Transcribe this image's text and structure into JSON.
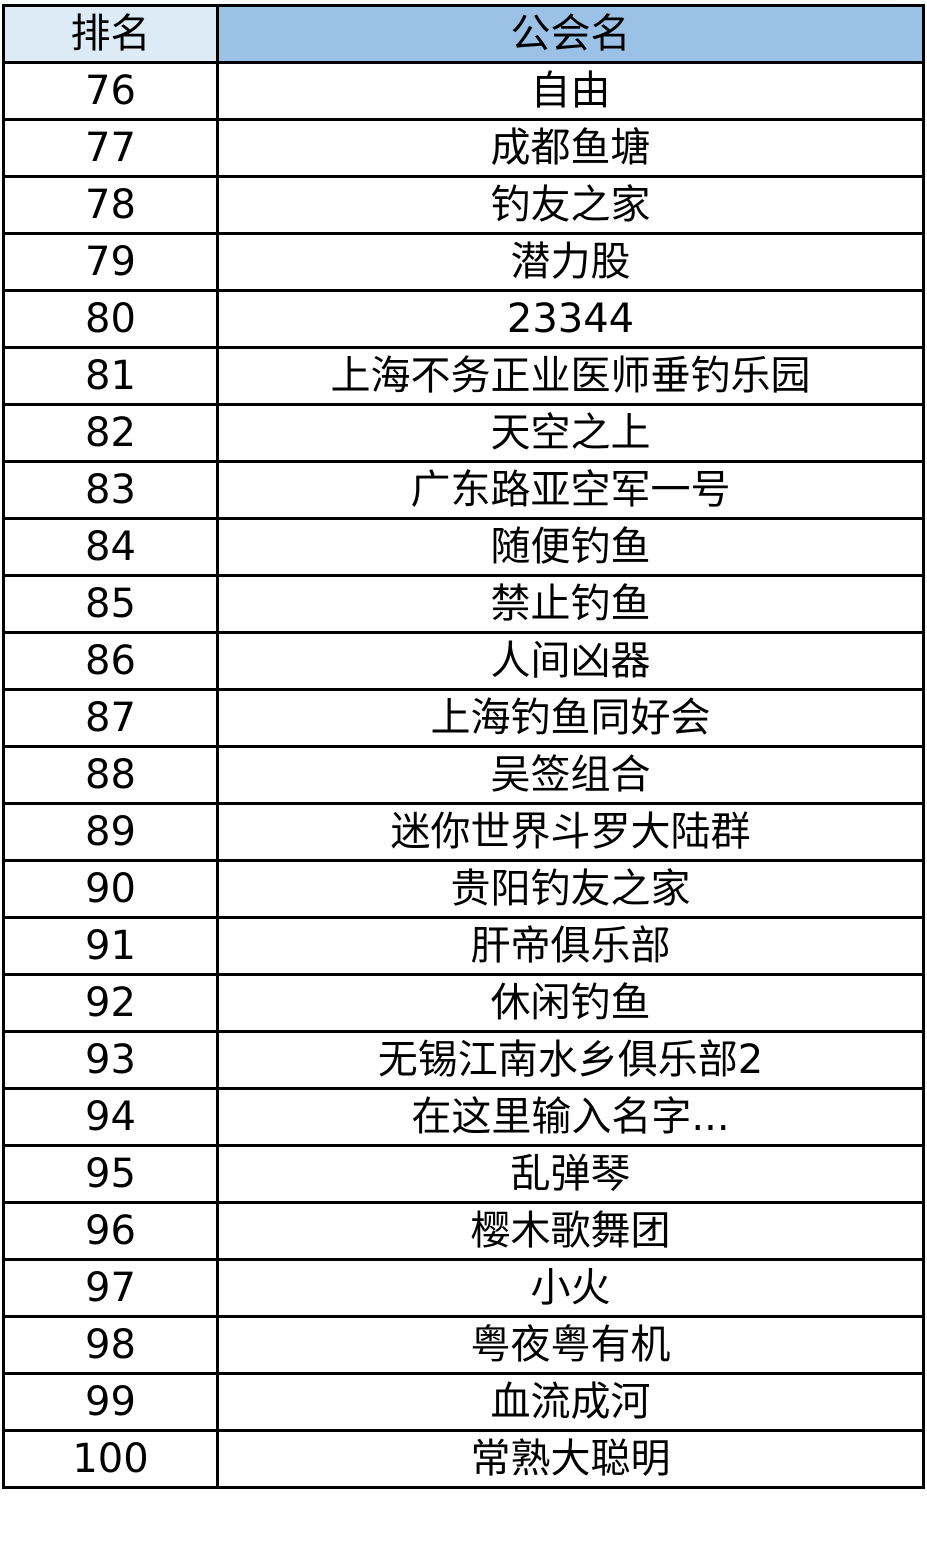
{
  "header": {
    "rank": "排名",
    "guild_name": "公会名"
  },
  "colors": {
    "header_rank_bg": "#ddebf7",
    "header_name_bg": "#9bc2e6",
    "border": "#000000"
  },
  "rows": [
    {
      "rank": "76",
      "name": "自由"
    },
    {
      "rank": "77",
      "name": "成都鱼塘"
    },
    {
      "rank": "78",
      "name": "钓友之家"
    },
    {
      "rank": "79",
      "name": "潜力股"
    },
    {
      "rank": "80",
      "name": "23344"
    },
    {
      "rank": "81",
      "name": "上海不务正业医师垂钓乐园"
    },
    {
      "rank": "82",
      "name": "天空之上"
    },
    {
      "rank": "83",
      "name": "广东路亚空军一号"
    },
    {
      "rank": "84",
      "name": "随便钓鱼"
    },
    {
      "rank": "85",
      "name": "禁止钓鱼"
    },
    {
      "rank": "86",
      "name": "人间凶器"
    },
    {
      "rank": "87",
      "name": "上海钓鱼同好会"
    },
    {
      "rank": "88",
      "name": "吴签组合"
    },
    {
      "rank": "89",
      "name": "迷你世界斗罗大陆群"
    },
    {
      "rank": "90",
      "name": "贵阳钓友之家"
    },
    {
      "rank": "91",
      "name": "肝帝俱乐部"
    },
    {
      "rank": "92",
      "name": "休闲钓鱼"
    },
    {
      "rank": "93",
      "name": "无锡江南水乡俱乐部2"
    },
    {
      "rank": "94",
      "name": "在这里输入名字..."
    },
    {
      "rank": "95",
      "name": "乱弹琴"
    },
    {
      "rank": "96",
      "name": "樱木歌舞团"
    },
    {
      "rank": "97",
      "name": "小火"
    },
    {
      "rank": "98",
      "name": "粤夜粤有机"
    },
    {
      "rank": "99",
      "name": "血流成河"
    },
    {
      "rank": "100",
      "name": "常熟大聪明"
    }
  ]
}
